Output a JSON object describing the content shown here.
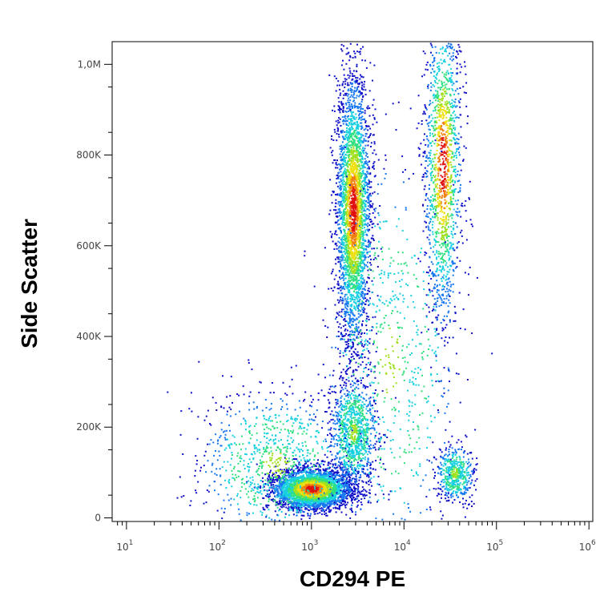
{
  "chart_data": {
    "type": "scatter",
    "title": "",
    "xlabel": "CD294 PE",
    "ylabel": "Side Scatter",
    "x_scale": "log",
    "x_range": [
      7,
      1100000
    ],
    "y_range": [
      -8000,
      1050000
    ],
    "x_ticks": [
      {
        "value": 10,
        "base": "10",
        "exp": "1"
      },
      {
        "value": 100,
        "base": "10",
        "exp": "2"
      },
      {
        "value": 1000,
        "base": "10",
        "exp": "3"
      },
      {
        "value": 10000,
        "base": "10",
        "exp": "4"
      },
      {
        "value": 100000,
        "base": "10",
        "exp": "5"
      },
      {
        "value": 1000000,
        "base": "10",
        "exp": "6"
      }
    ],
    "y_ticks": [
      {
        "value": 0,
        "label": "0"
      },
      {
        "value": 200000,
        "label": "200K"
      },
      {
        "value": 400000,
        "label": "400K"
      },
      {
        "value": 600000,
        "label": "600K"
      },
      {
        "value": 800000,
        "label": "800K"
      },
      {
        "value": 1000000,
        "label": "1,0M"
      }
    ],
    "density_colors": [
      "#1010c8",
      "#1878f0",
      "#18d0e0",
      "#30e080",
      "#a0e020",
      "#f0e010",
      "#f08010",
      "#e01010"
    ],
    "populations": [
      {
        "name": "",
        "x_center": 1000,
        "y_center": 65000,
        "x_spread_decades": 0.22,
        "y_spread": 22000,
        "weight": 3200
      },
      {
        "name": "",
        "x_center": 2800,
        "y_center": 680000,
        "x_spread_decades": 0.09,
        "y_spread": 150000,
        "weight": 3200
      },
      {
        "name": "",
        "x_center": 2800,
        "y_center": 190000,
        "x_spread_decades": 0.12,
        "y_spread": 60000,
        "weight": 1000
      },
      {
        "name": "",
        "x_center": 26000,
        "y_center": 780000,
        "x_spread_decades": 0.1,
        "y_spread": 180000,
        "weight": 1500
      },
      {
        "name": "",
        "x_center": 35000,
        "y_center": 100000,
        "x_spread_decades": 0.1,
        "y_spread": 30000,
        "weight": 500
      },
      {
        "name": "",
        "x_center": 400,
        "y_center": 120000,
        "x_spread_decades": 0.4,
        "y_spread": 80000,
        "weight": 900
      },
      {
        "name": "",
        "x_center": 7000,
        "y_center": 350000,
        "x_spread_decades": 0.35,
        "y_spread": 220000,
        "weight": 700
      }
    ]
  }
}
